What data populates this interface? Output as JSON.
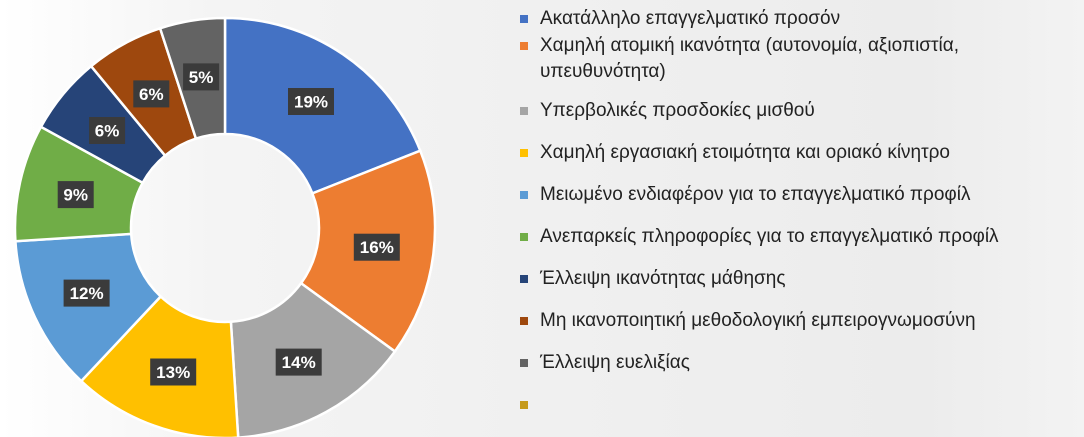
{
  "chart_data": {
    "type": "pie",
    "variant": "donut",
    "legend_position": "right",
    "values": [
      19,
      16,
      14,
      13,
      12,
      9,
      6,
      6,
      5
    ],
    "data_labels": [
      "19%",
      "16%",
      "14%",
      "13%",
      "12%",
      "9%",
      "6%",
      "6%",
      "5%"
    ],
    "categories": [
      "Ακατάλληλο επαγγελματικό προσόν",
      "Χαμηλή ατομική ικανότητα (αυτονομία, αξιοπιστία, υπευθυνότητα)",
      "Υπερβολικές προσδοκίες μισθού",
      "Χαμηλή εργασιακή ετοιμότητα και οριακό κίνητρο",
      "Μειωμένο ενδιαφέρον για το επαγγελματικό προφίλ",
      "Ανεπαρκείς πληροφορίες για το επαγγελματικό προφίλ",
      "Έλλειψη ικανότητας μάθησης",
      "Μη ικανοποιητική μεθοδολογική εμπειρογνωμοσύνη",
      "Έλλειψη ευελιξίας"
    ],
    "colors": [
      "#4472c4",
      "#ed7d31",
      "#a5a5a5",
      "#ffc000",
      "#5b9bd5",
      "#70ad47",
      "#264478",
      "#9e480e",
      "#636363"
    ],
    "legend": [
      {
        "label": "Ακατάλληλο επαγγελματικό προσόν",
        "color": "#4472c4"
      },
      {
        "label": "Χαμηλή ατομική ικανότητα (αυτονομία, αξιοπιστία, υπευθυνότητα)",
        "color": "#ed7d31"
      },
      {
        "label": "Υπερβολικές προσδοκίες μισθού",
        "color": "#a5a5a5"
      },
      {
        "label": "Χαμηλή εργασιακή ετοιμότητα και οριακό κίνητρο",
        "color": "#ffc000"
      },
      {
        "label": "Μειωμένο ενδιαφέρον για το επαγγελματικό προφίλ",
        "color": "#5b9bd5"
      },
      {
        "label": "Ανεπαρκείς πληροφορίες για το επαγγελματικό προφίλ",
        "color": "#70ad47"
      },
      {
        "label": "Έλλειψη ικανότητας μάθησης",
        "color": "#264478"
      },
      {
        "label": "Μη ικανοποιητική μεθοδολογική εμπειρογνωμοσύνη",
        "color": "#9e480e"
      },
      {
        "label": "Έλλειψη ευελιξίας",
        "color": "#636363"
      },
      {
        "label": "",
        "color": "#c59a1c"
      }
    ]
  }
}
